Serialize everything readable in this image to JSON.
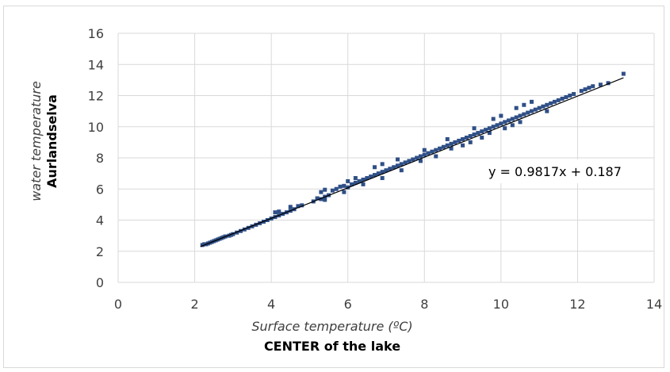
{
  "chart_data": {
    "type": "scatter",
    "xlabel": "Surface temperature (ºC)",
    "xlabel2": "CENTER of the lake",
    "ylabel": "water temperature",
    "ylabel2": "Aurlandselva",
    "xlim": [
      0,
      14
    ],
    "ylim": [
      0,
      16
    ],
    "xticks": [
      "0",
      "2",
      "4",
      "6",
      "8",
      "10",
      "12",
      "14"
    ],
    "yticks": [
      "0",
      "2",
      "4",
      "6",
      "8",
      "10",
      "12",
      "14",
      "16"
    ],
    "grid": true,
    "legend": "none",
    "annotation": "y = 0.9817x + 0.187",
    "trendline": {
      "slope": 0.9817,
      "intercept": 0.187,
      "x_range": [
        2.15,
        13.2
      ]
    },
    "colors": {
      "points": "#2f4f86",
      "trendline": "#000000",
      "grid": "#d9d9d9"
    },
    "series": [
      {
        "points": [
          [
            2.2,
            2.4
          ],
          [
            2.25,
            2.45
          ],
          [
            2.3,
            2.45
          ],
          [
            2.35,
            2.5
          ],
          [
            2.4,
            2.55
          ],
          [
            2.45,
            2.6
          ],
          [
            2.5,
            2.65
          ],
          [
            2.55,
            2.7
          ],
          [
            2.6,
            2.75
          ],
          [
            2.65,
            2.8
          ],
          [
            2.7,
            2.85
          ],
          [
            2.75,
            2.9
          ],
          [
            2.8,
            2.95
          ],
          [
            2.9,
            3.0
          ],
          [
            2.95,
            3.05
          ],
          [
            3.0,
            3.1
          ],
          [
            3.1,
            3.2
          ],
          [
            3.2,
            3.3
          ],
          [
            3.3,
            3.4
          ],
          [
            3.4,
            3.5
          ],
          [
            3.5,
            3.6
          ],
          [
            3.6,
            3.7
          ],
          [
            3.7,
            3.8
          ],
          [
            3.8,
            3.9
          ],
          [
            3.9,
            4.0
          ],
          [
            4.0,
            4.1
          ],
          [
            4.1,
            4.2
          ],
          [
            4.2,
            4.3
          ],
          [
            4.3,
            4.4
          ],
          [
            4.1,
            4.5
          ],
          [
            4.2,
            4.55
          ],
          [
            4.4,
            4.5
          ],
          [
            4.5,
            4.6
          ],
          [
            4.6,
            4.7
          ],
          [
            4.5,
            4.85
          ],
          [
            4.7,
            4.9
          ],
          [
            4.8,
            4.95
          ],
          [
            5.1,
            5.2
          ],
          [
            5.2,
            5.4
          ],
          [
            5.3,
            5.35
          ],
          [
            5.4,
            5.5
          ],
          [
            5.5,
            5.6
          ],
          [
            5.3,
            5.8
          ],
          [
            5.4,
            5.95
          ],
          [
            5.6,
            5.9
          ],
          [
            5.7,
            6.0
          ],
          [
            5.8,
            6.15
          ],
          [
            5.9,
            6.2
          ],
          [
            6.0,
            6.1
          ],
          [
            6.1,
            6.3
          ],
          [
            6.2,
            6.4
          ],
          [
            6.3,
            6.5
          ],
          [
            6.0,
            6.5
          ],
          [
            6.2,
            6.7
          ],
          [
            6.4,
            6.6
          ],
          [
            6.5,
            6.7
          ],
          [
            6.6,
            6.8
          ],
          [
            6.7,
            6.9
          ],
          [
            6.8,
            7.0
          ],
          [
            6.9,
            7.1
          ],
          [
            7.0,
            7.2
          ],
          [
            6.7,
            7.4
          ],
          [
            6.9,
            7.6
          ],
          [
            7.1,
            7.3
          ],
          [
            7.2,
            7.4
          ],
          [
            7.3,
            7.5
          ],
          [
            7.4,
            7.6
          ],
          [
            7.5,
            7.7
          ],
          [
            7.3,
            7.9
          ],
          [
            7.6,
            7.8
          ],
          [
            7.7,
            7.9
          ],
          [
            7.8,
            8.0
          ],
          [
            7.9,
            8.1
          ],
          [
            8.0,
            8.2
          ],
          [
            8.1,
            8.3
          ],
          [
            8.2,
            8.4
          ],
          [
            8.0,
            8.5
          ],
          [
            8.3,
            8.5
          ],
          [
            8.4,
            8.6
          ],
          [
            8.5,
            8.7
          ],
          [
            8.6,
            8.8
          ],
          [
            8.7,
            8.9
          ],
          [
            8.8,
            9.0
          ],
          [
            8.9,
            9.1
          ],
          [
            8.6,
            9.2
          ],
          [
            9.0,
            9.2
          ],
          [
            9.1,
            9.3
          ],
          [
            9.2,
            9.4
          ],
          [
            9.3,
            9.5
          ],
          [
            9.4,
            9.6
          ],
          [
            9.5,
            9.7
          ],
          [
            9.3,
            9.9
          ],
          [
            9.6,
            9.8
          ],
          [
            9.7,
            9.9
          ],
          [
            9.8,
            10.0
          ],
          [
            9.9,
            10.1
          ],
          [
            10.0,
            10.2
          ],
          [
            10.1,
            10.3
          ],
          [
            10.2,
            10.4
          ],
          [
            9.8,
            10.5
          ],
          [
            10.0,
            10.7
          ],
          [
            10.3,
            10.5
          ],
          [
            10.4,
            10.6
          ],
          [
            10.5,
            10.7
          ],
          [
            10.6,
            10.8
          ],
          [
            10.7,
            10.9
          ],
          [
            10.8,
            11.0
          ],
          [
            10.9,
            11.1
          ],
          [
            10.4,
            11.2
          ],
          [
            10.6,
            11.4
          ],
          [
            11.0,
            11.2
          ],
          [
            11.1,
            11.3
          ],
          [
            11.2,
            11.4
          ],
          [
            11.3,
            11.5
          ],
          [
            10.8,
            11.6
          ],
          [
            11.4,
            11.6
          ],
          [
            11.5,
            11.7
          ],
          [
            11.6,
            11.8
          ],
          [
            11.7,
            11.9
          ],
          [
            11.8,
            12.0
          ],
          [
            11.9,
            12.1
          ],
          [
            12.1,
            12.3
          ],
          [
            12.2,
            12.4
          ],
          [
            12.3,
            12.5
          ],
          [
            12.4,
            12.6
          ],
          [
            12.6,
            12.7
          ],
          [
            12.8,
            12.8
          ],
          [
            13.2,
            13.4
          ],
          [
            8.3,
            8.1
          ],
          [
            8.7,
            8.6
          ],
          [
            9.2,
            9.0
          ],
          [
            9.7,
            9.6
          ],
          [
            10.1,
            9.9
          ],
          [
            10.5,
            10.3
          ],
          [
            9.0,
            8.8
          ],
          [
            9.5,
            9.3
          ],
          [
            7.4,
            7.2
          ],
          [
            6.9,
            6.7
          ],
          [
            6.4,
            6.3
          ],
          [
            5.9,
            5.8
          ],
          [
            5.4,
            5.3
          ],
          [
            7.9,
            7.8
          ],
          [
            10.3,
            10.1
          ],
          [
            11.2,
            11.0
          ]
        ]
      }
    ]
  }
}
